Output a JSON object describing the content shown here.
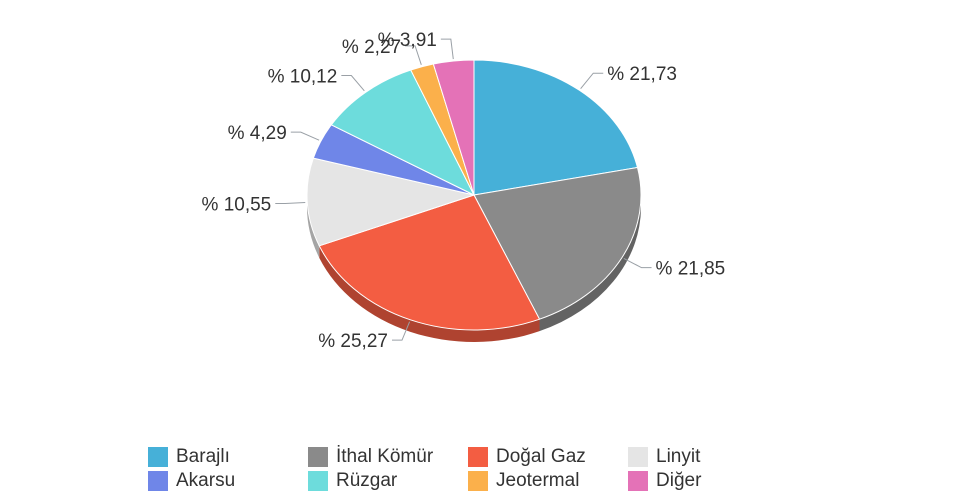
{
  "chart_data": {
    "type": "pie",
    "style": "3d",
    "categories": [
      "Barajlı",
      "İthal Kömür",
      "Doğal Gaz",
      "Linyit",
      "Akarsu",
      "Rüzgar",
      "Jeotermal",
      "Diğer"
    ],
    "values": [
      21.73,
      21.85,
      25.27,
      10.55,
      4.29,
      10.12,
      2.27,
      3.91
    ],
    "data_labels": [
      "% 21,73",
      "% 21,85",
      "% 25,27",
      "% 10,55",
      "% 4,29",
      "% 10,12",
      "% 2,27",
      "% 3,91"
    ],
    "colors": [
      "#46b0d8",
      "#8a8a8a",
      "#f35d42",
      "#e5e5e5",
      "#6f86e8",
      "#6ddcdc",
      "#fbb04b",
      "#e472b7"
    ],
    "legend_position": "bottom",
    "title": ""
  },
  "legend": [
    {
      "label": "Barajlı",
      "color": "#46b0d8"
    },
    {
      "label": "İthal Kömür",
      "color": "#8a8a8a"
    },
    {
      "label": "Doğal Gaz",
      "color": "#f35d42"
    },
    {
      "label": "Linyit",
      "color": "#e5e5e5"
    },
    {
      "label": "Akarsu",
      "color": "#6f86e8"
    },
    {
      "label": "Rüzgar",
      "color": "#6ddcdc"
    },
    {
      "label": "Jeotermal",
      "color": "#fbb04b"
    },
    {
      "label": "Diğer",
      "color": "#e472b7"
    }
  ]
}
